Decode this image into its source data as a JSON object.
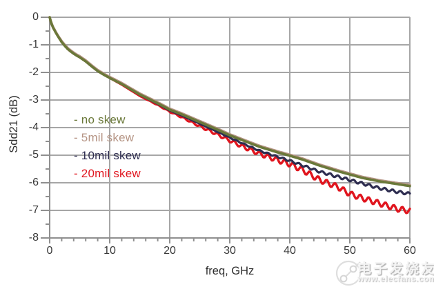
{
  "watermark": {
    "brand": "电子发烧友",
    "url": "www.elecfans.com",
    "logo": "plug-cable-logo",
    "style_color": "#e9e9e9"
  },
  "chart_data": {
    "type": "line",
    "title": "",
    "xlabel": "freq, GHz",
    "ylabel": "Sdd21 (dB)",
    "xlim": [
      0,
      60
    ],
    "ylim": [
      -8,
      0
    ],
    "x_ticks": [
      0,
      10,
      20,
      30,
      40,
      50,
      60
    ],
    "y_ticks": [
      0,
      -1,
      -2,
      -3,
      -4,
      -5,
      -6,
      -7,
      -8
    ],
    "x_minor_step_ghz": 2,
    "y_minor_step_db": 0.5,
    "grid": true,
    "grid_color": "#a6a6a6",
    "axis_color": "#8f8f8f",
    "tick_label_color": "#383838",
    "legend_position": "inside-left",
    "x": [
      0,
      0.25,
      0.5,
      1,
      1.5,
      2,
      2.5,
      3,
      3.5,
      4,
      4.5,
      5,
      6,
      7,
      8,
      9,
      10,
      12,
      15,
      18,
      20,
      22,
      25,
      28,
      30,
      32,
      35,
      38,
      40,
      42,
      45,
      48,
      50,
      52,
      55,
      58,
      60
    ],
    "series": [
      {
        "name": "20mil-skew",
        "label": "- 20mil skew",
        "color": "#e0151e",
        "line_width": 3.4,
        "ripple": {
          "start_ghz": 15,
          "period_ghz": 1.4,
          "max_amplitude_db": 0.1
        },
        "values": [
          0,
          -0.2,
          -0.35,
          -0.55,
          -0.73,
          -0.9,
          -1.03,
          -1.15,
          -1.24,
          -1.32,
          -1.39,
          -1.45,
          -1.6,
          -1.78,
          -1.95,
          -2.08,
          -2.2,
          -2.44,
          -2.85,
          -3.18,
          -3.42,
          -3.62,
          -3.95,
          -4.25,
          -4.47,
          -4.67,
          -4.95,
          -5.18,
          -5.32,
          -5.52,
          -5.9,
          -6.15,
          -6.4,
          -6.55,
          -6.75,
          -6.95,
          -7.02
        ]
      },
      {
        "name": "10mil-skew",
        "label": "- 10mil skew",
        "color": "#2e2d50",
        "line_width": 3.2,
        "ripple": {
          "start_ghz": 23,
          "period_ghz": 1.3,
          "max_amplitude_db": 0.05
        },
        "values": [
          0,
          -0.2,
          -0.35,
          -0.55,
          -0.73,
          -0.9,
          -1.03,
          -1.15,
          -1.24,
          -1.32,
          -1.39,
          -1.45,
          -1.6,
          -1.78,
          -1.95,
          -2.08,
          -2.2,
          -2.42,
          -2.81,
          -3.14,
          -3.38,
          -3.56,
          -3.86,
          -4.16,
          -4.36,
          -4.56,
          -4.84,
          -5.06,
          -5.2,
          -5.36,
          -5.6,
          -5.78,
          -5.9,
          -6.02,
          -6.2,
          -6.33,
          -6.4
        ]
      },
      {
        "name": "5mil-skew",
        "label": "- 5mil skew",
        "color": "#b59484",
        "line_width": 3.4,
        "ripple": null,
        "values": [
          0,
          -0.17,
          -0.32,
          -0.52,
          -0.7,
          -0.86,
          -0.99,
          -1.11,
          -1.2,
          -1.28,
          -1.35,
          -1.41,
          -1.56,
          -1.74,
          -1.91,
          -2.04,
          -2.16,
          -2.38,
          -2.76,
          -3.08,
          -3.31,
          -3.48,
          -3.76,
          -4.04,
          -4.24,
          -4.41,
          -4.66,
          -4.86,
          -4.98,
          -5.11,
          -5.34,
          -5.54,
          -5.66,
          -5.78,
          -5.91,
          -6.01,
          -6.08
        ]
      },
      {
        "name": "no-skew",
        "label": "- no skew",
        "color": "#6a7839",
        "line_width": 3.6,
        "ripple": null,
        "values": [
          0,
          -0.2,
          -0.35,
          -0.55,
          -0.73,
          -0.9,
          -1.03,
          -1.15,
          -1.24,
          -1.32,
          -1.39,
          -1.45,
          -1.6,
          -1.78,
          -1.95,
          -2.08,
          -2.2,
          -2.42,
          -2.8,
          -3.12,
          -3.35,
          -3.52,
          -3.8,
          -4.08,
          -4.28,
          -4.45,
          -4.7,
          -4.9,
          -5.02,
          -5.15,
          -5.38,
          -5.58,
          -5.7,
          -5.82,
          -5.95,
          -6.05,
          -6.12
        ]
      }
    ],
    "legend_order": [
      "no-skew",
      "5mil-skew",
      "10mil-skew",
      "20mil-skew"
    ]
  }
}
